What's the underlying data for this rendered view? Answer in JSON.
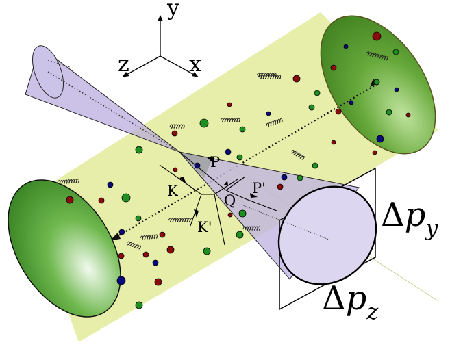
{
  "axes": {
    "y": "y",
    "z": "z",
    "x": "x"
  },
  "momenta": {
    "P": "P",
    "P_prime": "P'",
    "K": "K",
    "K_prime": "K'",
    "Q": "Q"
  },
  "widths": {
    "dpy": {
      "delta": "Δ",
      "p": "p",
      "sub": "y"
    },
    "dpz": {
      "delta": "Δ",
      "p": "p",
      "sub": "z"
    }
  },
  "colors": {
    "medium": "#e6eeaa",
    "end_cap": "#4e9a30",
    "cone": "#c9c0e4",
    "red": "#8b0b0b",
    "green": "#1f8f1f",
    "blue": "#0a0a7a"
  },
  "gluons": 12
}
